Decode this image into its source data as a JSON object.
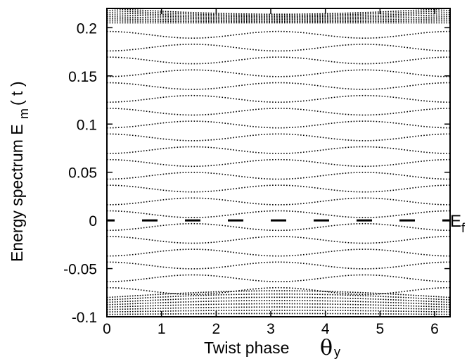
{
  "chart_data": {
    "type": "line",
    "xlabel": "Twist phase",
    "xlabel_symbol": "θ",
    "xlabel_symbol_sub": "y",
    "ylabel": "Energy spectrum  E",
    "ylabel_sub": "m",
    "ylabel_unit": "( t )",
    "xlim": [
      0,
      6.283
    ],
    "ylim": [
      -0.1,
      0.22
    ],
    "x_ticks": [
      0,
      1,
      2,
      3,
      4,
      5,
      6
    ],
    "x_tick_labels": [
      "0",
      "1",
      "2",
      "3",
      "4",
      "5",
      "6"
    ],
    "y_ticks": [
      0.2,
      0.15,
      0.1,
      0.05,
      0,
      -0.05,
      -0.1
    ],
    "y_tick_labels": [
      "0.2",
      "0.15",
      "0.1",
      "0.05",
      "0",
      "-0.05",
      "-0.1"
    ],
    "annotation": {
      "text": "E",
      "sub": "f",
      "y": 0
    },
    "levels": {
      "description_free": true,
      "spacing": 0.0133,
      "count_between": 24,
      "dense_band_top": [
        0.205,
        0.22
      ],
      "dense_band_bottom": [
        -0.1,
        -0.08
      ],
      "fermi_level_dashes": true
    },
    "line_style": "dotted",
    "colors": {
      "line": "#000000",
      "background": "#ffffff"
    },
    "grid": false,
    "legend": "none"
  }
}
